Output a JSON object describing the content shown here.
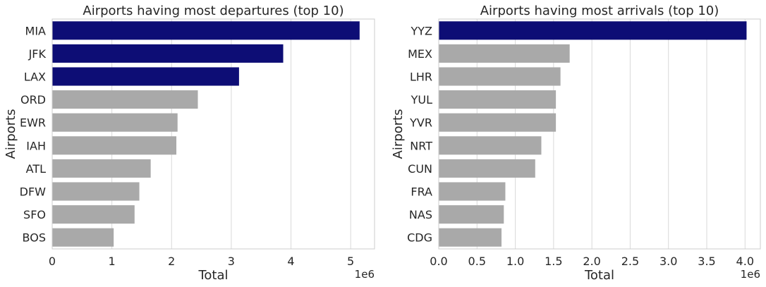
{
  "chart_data": [
    {
      "type": "bar",
      "orientation": "horizontal",
      "title": "Airports having most departures (top 10)",
      "xlabel": "Total",
      "ylabel": "Airports",
      "x_offset_label": "1e6",
      "xlim": [
        0,
        5.4
      ],
      "xticks": [
        "0",
        "1",
        "2",
        "3",
        "4",
        "5"
      ],
      "grid": "vertical",
      "legend": "none",
      "highlight_color": "#0d0d75",
      "base_color": "#a9a9a9",
      "categories": [
        "MIA",
        "JFK",
        "LAX",
        "ORD",
        "EWR",
        "IAH",
        "ATL",
        "DFW",
        "SFO",
        "BOS"
      ],
      "values": [
        5.15,
        3.87,
        3.13,
        2.44,
        2.1,
        2.08,
        1.65,
        1.46,
        1.38,
        1.03
      ],
      "highlighted": [
        true,
        true,
        true,
        false,
        false,
        false,
        false,
        false,
        false,
        false
      ]
    },
    {
      "type": "bar",
      "orientation": "horizontal",
      "title": "Airports having most arrivals (top 10)",
      "xlabel": "Total",
      "ylabel": "Airports",
      "x_offset_label": "1e6",
      "xlim": [
        0,
        4.2
      ],
      "xticks": [
        "0.0",
        "0.5",
        "1.0",
        "1.5",
        "2.0",
        "2.5",
        "3.0",
        "3.5",
        "4.0"
      ],
      "grid": "vertical",
      "legend": "none",
      "highlight_color": "#0d0d75",
      "base_color": "#a9a9a9",
      "categories": [
        "YYZ",
        "MEX",
        "LHR",
        "YUL",
        "YVR",
        "NRT",
        "CUN",
        "FRA",
        "NAS",
        "CDG"
      ],
      "values": [
        4.02,
        1.71,
        1.59,
        1.53,
        1.53,
        1.34,
        1.26,
        0.87,
        0.85,
        0.82
      ],
      "highlighted": [
        true,
        false,
        false,
        false,
        false,
        false,
        false,
        false,
        false,
        false
      ]
    }
  ]
}
